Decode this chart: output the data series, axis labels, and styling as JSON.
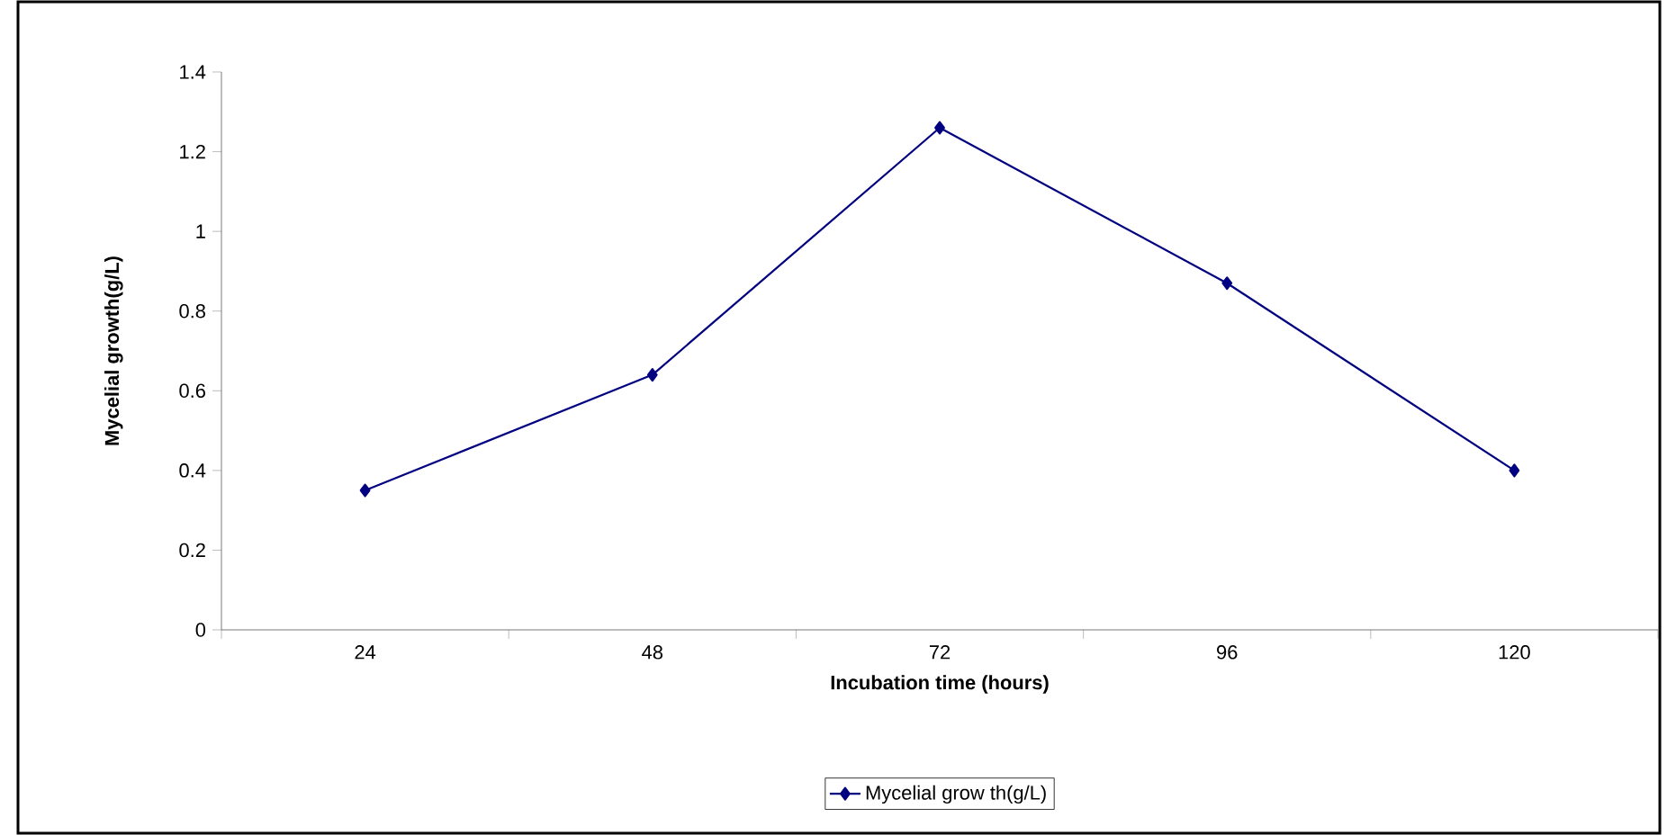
{
  "chart_data": {
    "type": "line",
    "xlabel": "Incubation time (hours)",
    "ylabel": "Mycelial growth(g/L)",
    "categories": [
      "24",
      "48",
      "72",
      "96",
      "120"
    ],
    "series": [
      {
        "name": "Mycelial grow th(g/L)",
        "color": "#000080",
        "values": [
          0.35,
          0.64,
          1.26,
          0.87,
          0.4
        ]
      }
    ],
    "ylim": [
      0,
      1.4
    ],
    "yticks": [
      0,
      0.2,
      0.4,
      0.6,
      0.8,
      1,
      1.2,
      1.4
    ],
    "marker": "diamond",
    "line_style": "solid",
    "legend": "bottom"
  }
}
